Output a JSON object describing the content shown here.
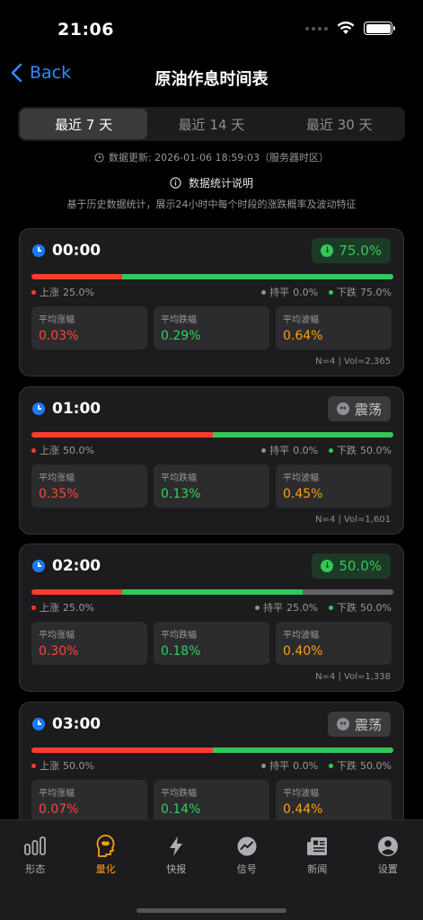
{
  "status": {
    "time": "21:06"
  },
  "nav": {
    "back_label": "Back",
    "title": "原油作息时间表"
  },
  "segments": [
    {
      "label": "最近 7 天",
      "active": true
    },
    {
      "label": "最近 14 天",
      "active": false
    },
    {
      "label": "最近 30 天",
      "active": false
    }
  ],
  "info": {
    "update_text": "数据更新: 2026-01-06 18:59:03（服务器时区）",
    "explain_label": "数据统计说明",
    "description": "基于历史数据统计，展示24小时中每个时段的涨跌概率及波动特征"
  },
  "labels": {
    "up": "上涨",
    "flat": "持平",
    "down": "下跌",
    "avg_up": "平均涨幅",
    "avg_down": "平均跌幅",
    "avg_vol": "平均波幅"
  },
  "cards": [
    {
      "time": "00:00",
      "badge": "75.0%",
      "badge_type": "down",
      "up": "25.0%",
      "flat": "0.0%",
      "down": "75.0%",
      "up_frac": 0.25,
      "flat_frac": 0.0,
      "down_frac": 0.75,
      "avg_up": "0.03%",
      "avg_down": "0.29%",
      "avg_vol": "0.64%",
      "foot": "N=4 | Vol=2,365"
    },
    {
      "time": "01:00",
      "badge": "震荡",
      "badge_type": "flat",
      "up": "50.0%",
      "flat": "0.0%",
      "down": "50.0%",
      "up_frac": 0.5,
      "flat_frac": 0.0,
      "down_frac": 0.5,
      "avg_up": "0.35%",
      "avg_down": "0.13%",
      "avg_vol": "0.45%",
      "foot": "N=4 | Vol=1,601"
    },
    {
      "time": "02:00",
      "badge": "50.0%",
      "badge_type": "down",
      "up": "25.0%",
      "flat": "25.0%",
      "down": "50.0%",
      "up_frac": 0.25,
      "flat_frac": 0.25,
      "down_frac": 0.5,
      "avg_up": "0.30%",
      "avg_down": "0.18%",
      "avg_vol": "0.40%",
      "foot": "N=4 | Vol=1,338"
    },
    {
      "time": "03:00",
      "badge": "震荡",
      "badge_type": "flat",
      "up": "50.0%",
      "flat": "0.0%",
      "down": "50.0%",
      "up_frac": 0.5,
      "flat_frac": 0.0,
      "down_frac": 0.5,
      "avg_up": "0.07%",
      "avg_down": "0.14%",
      "avg_vol": "0.44%",
      "foot": ""
    }
  ],
  "tabbar": [
    {
      "label": "形态",
      "icon": "bars-icon",
      "active": false
    },
    {
      "label": "量化",
      "icon": "brain-icon",
      "active": true
    },
    {
      "label": "快报",
      "icon": "lightning-icon",
      "active": false
    },
    {
      "label": "信号",
      "icon": "chart-circle-icon",
      "active": false
    },
    {
      "label": "新闻",
      "icon": "newspaper-icon",
      "active": false
    },
    {
      "label": "设置",
      "icon": "person-icon",
      "active": false
    }
  ]
}
